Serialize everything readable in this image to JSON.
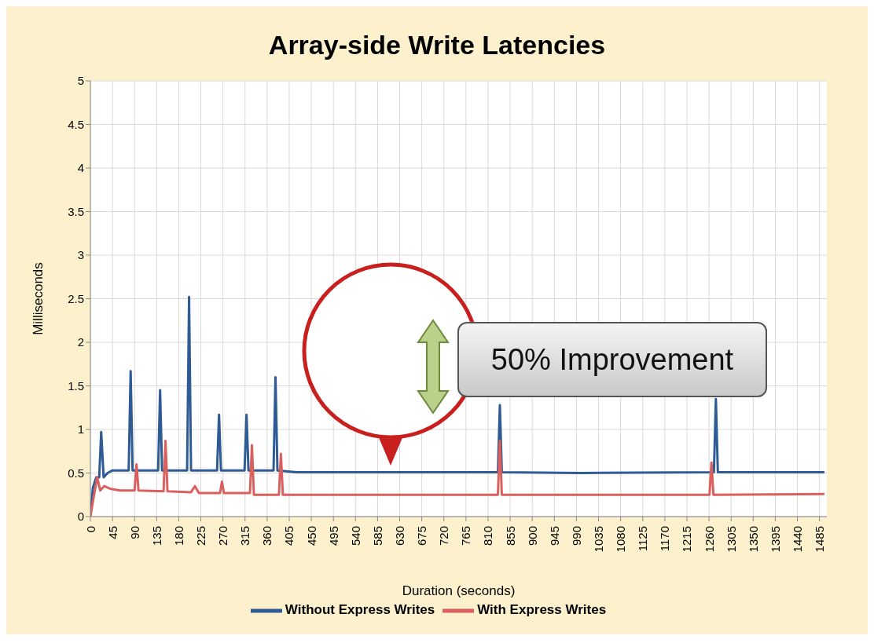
{
  "chart_data": {
    "type": "line",
    "title": "Array-side Write Latencies",
    "xlabel": "Duration (seconds)",
    "ylabel": "Milliseconds",
    "annotations": [
      "50% Improvement"
    ],
    "xlim": [
      0,
      1500
    ],
    "xticks": [
      0,
      45,
      90,
      135,
      180,
      225,
      270,
      315,
      360,
      405,
      450,
      495,
      540,
      585,
      630,
      675,
      720,
      765,
      810,
      855,
      900,
      945,
      990,
      1035,
      1080,
      1125,
      1170,
      1215,
      1260,
      1305,
      1350,
      1395,
      1440,
      1485
    ],
    "ylim": [
      0,
      5
    ],
    "yticks": [
      0,
      0.5,
      1,
      1.5,
      2,
      2.5,
      3,
      3.5,
      4,
      4.5,
      5
    ],
    "grid": true,
    "legend": "bottom",
    "marker": "none",
    "line_style": "solid",
    "series": [
      {
        "name": "Without Express Writes",
        "color": "#2e5b94",
        "x": [
          0,
          5,
          12,
          18,
          22,
          27,
          35,
          45,
          78,
          82,
          86,
          138,
          142,
          146,
          197,
          201,
          205,
          258,
          262,
          266,
          314,
          318,
          322,
          373,
          377,
          381,
          420,
          830,
          834,
          838,
          1000,
          1270,
          1274,
          1278,
          1495
        ],
        "values": [
          0,
          0.33,
          0.45,
          0.45,
          0.97,
          0.45,
          0.5,
          0.53,
          0.53,
          1.67,
          0.53,
          0.53,
          1.45,
          0.53,
          0.53,
          2.52,
          0.53,
          0.53,
          1.17,
          0.53,
          0.53,
          1.17,
          0.53,
          0.53,
          1.6,
          0.53,
          0.51,
          0.51,
          1.28,
          0.51,
          0.5,
          0.51,
          1.35,
          0.51,
          0.51
        ]
      },
      {
        "name": "With Express Writes",
        "color": "#d9605c",
        "x": [
          0,
          6,
          14,
          20,
          28,
          40,
          60,
          90,
          94,
          98,
          149,
          153,
          157,
          205,
          213,
          221,
          264,
          268,
          272,
          325,
          329,
          333,
          384,
          388,
          392,
          830,
          834,
          838,
          1261,
          1265,
          1269,
          1495
        ],
        "values": [
          0,
          0.2,
          0.45,
          0.3,
          0.35,
          0.32,
          0.3,
          0.3,
          0.6,
          0.3,
          0.29,
          0.87,
          0.29,
          0.28,
          0.35,
          0.27,
          0.27,
          0.4,
          0.27,
          0.27,
          0.82,
          0.25,
          0.25,
          0.72,
          0.25,
          0.25,
          0.87,
          0.25,
          0.25,
          0.62,
          0.25,
          0.26
        ]
      }
    ]
  }
}
